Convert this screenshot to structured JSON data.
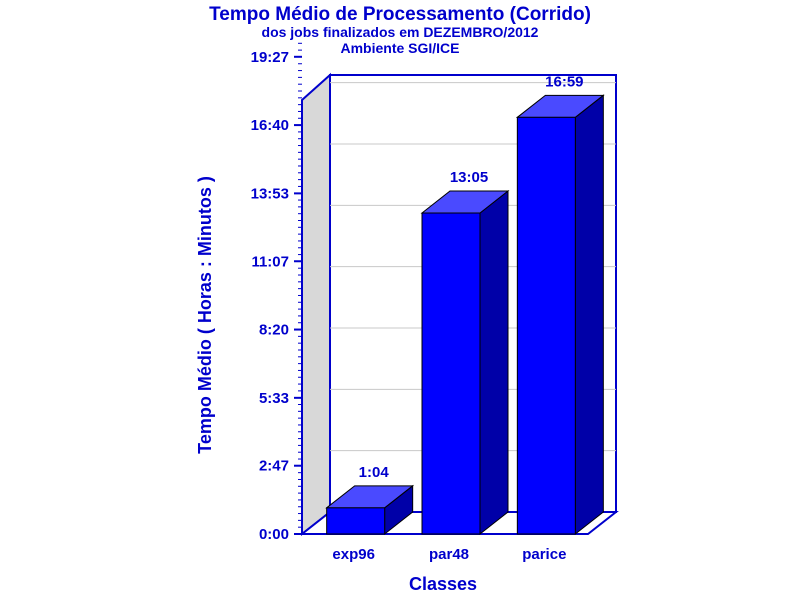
{
  "colors": {
    "text": "#0000cc",
    "frame": "#0000cc",
    "bar_front": "#0000ff",
    "bar_top": "#4a4aff",
    "bar_side": "#0000a8",
    "wall": "#d8d8d8",
    "grid": "#c8c8c8"
  },
  "chart_data": {
    "type": "bar",
    "title": "Tempo Médio de Processamento (Corrido)",
    "subtitle": "dos jobs finalizados em DEZEMBRO/2012",
    "subtitle2": "Ambiente SGI/ICE",
    "xlabel": "Classes",
    "ylabel": "Tempo Médio ( Horas : Minutos )",
    "categories": [
      "exp96",
      "par48",
      "parice"
    ],
    "values": [
      64,
      785,
      1019
    ],
    "value_labels": [
      "1:04",
      "13:05",
      "16:59"
    ],
    "ylim": [
      0,
      1200
    ],
    "yticks": [
      0,
      167,
      333,
      500,
      667,
      833,
      1000,
      1167
    ],
    "ytick_labels": [
      "0:00",
      "2:47",
      "5:33",
      "8:20",
      "11:07",
      "13:53",
      "16:40",
      "19:27"
    ],
    "grid": true,
    "three_d": true
  }
}
